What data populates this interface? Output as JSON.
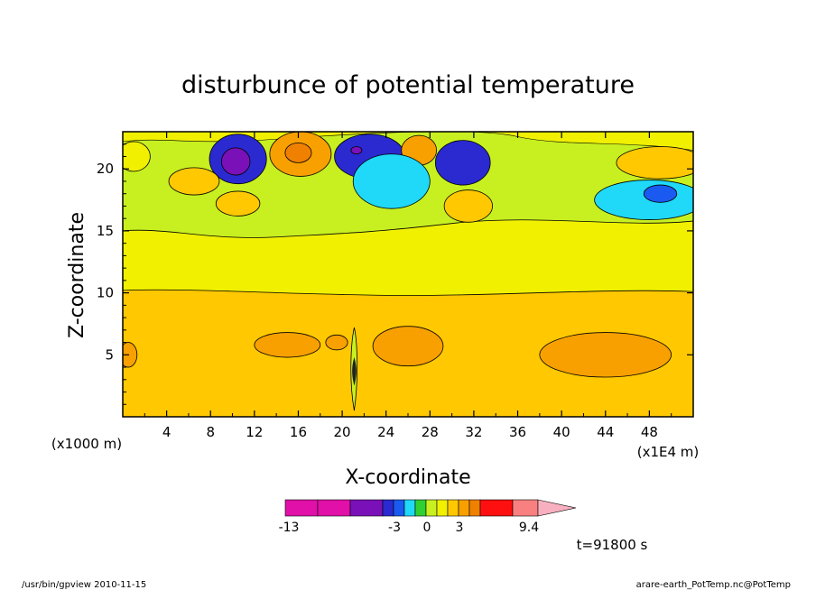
{
  "chart_data": {
    "type": "heatmap",
    "title": "disturbunce of potential temperature",
    "xlabel": "X-coordinate",
    "ylabel": "Z-coordinate",
    "x_unit_note": "(x1E4 m)",
    "y_unit_note": "(x1000 m)",
    "xlim": [
      0,
      52
    ],
    "ylim": [
      0,
      23
    ],
    "x_ticks": [
      "4",
      "8",
      "12",
      "16",
      "20",
      "24",
      "28",
      "32",
      "36",
      "40",
      "44",
      "48"
    ],
    "y_ticks": [
      "5",
      "10",
      "15",
      "20"
    ],
    "colorbar": {
      "labels": [
        "-13",
        "-3",
        "0",
        "3",
        "9.4"
      ],
      "colors": [
        "#e010a8",
        "#e010a8",
        "#7a10b8",
        "#2a2ad0",
        "#1a5af0",
        "#20d8f8",
        "#30d030",
        "#c8f020",
        "#f0f000",
        "#ffc800",
        "#f8a000",
        "#f08000",
        "#ff1010",
        "#f88080",
        "#f8b0c0"
      ]
    },
    "blobs": [
      {
        "x": 10.5,
        "z": 20.8,
        "rx": 2.6,
        "rz": 2.0,
        "value": -5.5
      },
      {
        "x": 10.3,
        "z": 20.6,
        "rx": 1.3,
        "rz": 1.1,
        "value": -7.0
      },
      {
        "x": 16.2,
        "z": 21.2,
        "rx": 2.8,
        "rz": 1.8,
        "value": 3.0
      },
      {
        "x": 16.0,
        "z": 21.3,
        "rx": 1.2,
        "rz": 0.8,
        "value": 5.0
      },
      {
        "x": 22.5,
        "z": 21.0,
        "rx": 3.2,
        "rz": 1.8,
        "value": -6.0
      },
      {
        "x": 21.3,
        "z": 21.5,
        "rx": 0.5,
        "rz": 0.3,
        "value": -9.0
      },
      {
        "x": 27.0,
        "z": 21.5,
        "rx": 1.6,
        "rz": 1.2,
        "value": 3.0
      },
      {
        "x": 31.0,
        "z": 20.5,
        "rx": 2.5,
        "rz": 1.8,
        "value": -5.5
      },
      {
        "x": 24.5,
        "z": 19.0,
        "rx": 3.5,
        "rz": 2.2,
        "value": -2.0
      },
      {
        "x": 48.0,
        "z": 17.5,
        "rx": 5.0,
        "rz": 1.6,
        "value": -2.2
      },
      {
        "x": 49.0,
        "z": 18.0,
        "rx": 1.5,
        "rz": 0.7,
        "value": -4.0
      },
      {
        "x": 49.0,
        "z": 20.5,
        "rx": 4.0,
        "rz": 1.3,
        "value": 1.6
      },
      {
        "x": 6.5,
        "z": 19.0,
        "rx": 2.3,
        "rz": 1.1,
        "value": 1.6
      },
      {
        "x": 10.5,
        "z": 17.2,
        "rx": 2.0,
        "rz": 1.0,
        "value": 1.6
      },
      {
        "x": 31.5,
        "z": 17.0,
        "rx": 2.2,
        "rz": 1.3,
        "value": 2.0
      },
      {
        "x": 1.0,
        "z": 21.0,
        "rx": 1.5,
        "rz": 1.2,
        "value": 1.2
      },
      {
        "x": 15.0,
        "z": 5.8,
        "rx": 3.0,
        "rz": 1.0,
        "value": 3.0
      },
      {
        "x": 26.0,
        "z": 5.7,
        "rx": 3.2,
        "rz": 1.6,
        "value": 3.0
      },
      {
        "x": 44.0,
        "z": 5.0,
        "rx": 6.0,
        "rz": 1.8,
        "value": 3.0
      },
      {
        "x": 19.5,
        "z": 6.0,
        "rx": 1.0,
        "rz": 0.6,
        "value": 3.0
      },
      {
        "x": 0.5,
        "z": 5.0,
        "rx": 0.8,
        "rz": 1.0,
        "value": 3.0
      }
    ]
  },
  "footer": {
    "time_label": "t=91800 s",
    "left_text": "/usr/bin/gpview  2010-11-15",
    "right_text": "arare-earth_PotTemp.nc@PotTemp"
  }
}
